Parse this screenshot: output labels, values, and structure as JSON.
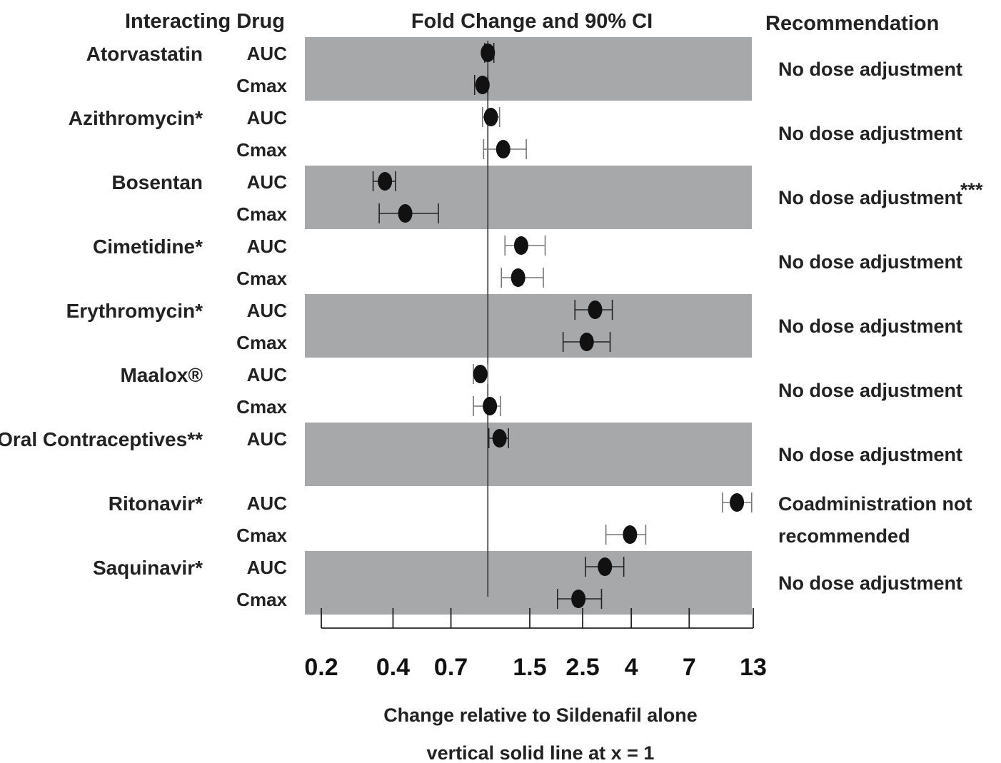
{
  "chart_data": {
    "type": "forest",
    "headers": {
      "drug": "Interacting Drug",
      "chart": "Fold Change and 90% CI",
      "recommendation": "Recommendation"
    },
    "x_scale": "log",
    "xlim": [
      0.2,
      13
    ],
    "x_ticks": [
      "0.2",
      "0.4",
      "0.7",
      "1.5",
      "2.5",
      "4",
      "7",
      "13"
    ],
    "reference_line_x": 1,
    "x_label_lines": [
      "Change relative to Sildenafil alone",
      "vertical solid line at x = 1"
    ],
    "groups": [
      {
        "drug": "Atorvastatin",
        "shaded": true,
        "recommendation": [
          "No dose adjustment"
        ],
        "rows": [
          {
            "param": "AUC",
            "estimate": 1.0,
            "ci": [
              0.97,
              1.06
            ]
          },
          {
            "param": "Cmax",
            "estimate": 0.95,
            "ci": [
              0.88,
              1.0
            ]
          }
        ]
      },
      {
        "drug": "Azithromycin*",
        "shaded": false,
        "recommendation": [
          "No dose adjustment"
        ],
        "rows": [
          {
            "param": "AUC",
            "estimate": 1.03,
            "ci": [
              0.95,
              1.12
            ]
          },
          {
            "param": "Cmax",
            "estimate": 1.16,
            "ci": [
              0.96,
              1.45
            ]
          }
        ]
      },
      {
        "drug": "Bosentan",
        "shaded": true,
        "recommendation": [
          "No dose adjustment"
        ],
        "footnote": "***",
        "rows": [
          {
            "param": "AUC",
            "estimate": 0.37,
            "ci": [
              0.33,
              0.41
            ]
          },
          {
            "param": "Cmax",
            "estimate": 0.45,
            "ci": [
              0.35,
              0.62
            ]
          }
        ]
      },
      {
        "drug": "Cimetidine*",
        "shaded": false,
        "recommendation": [
          "No dose adjustment"
        ],
        "rows": [
          {
            "param": "AUC",
            "estimate": 1.38,
            "ci": [
              1.18,
              1.74
            ]
          },
          {
            "param": "Cmax",
            "estimate": 1.34,
            "ci": [
              1.14,
              1.71
            ]
          }
        ]
      },
      {
        "drug": "Erythromycin*",
        "shaded": true,
        "recommendation": [
          "No dose adjustment"
        ],
        "rows": [
          {
            "param": "AUC",
            "estimate": 2.82,
            "ci": [
              2.32,
              3.33
            ]
          },
          {
            "param": "Cmax",
            "estimate": 2.6,
            "ci": [
              2.07,
              3.26
            ]
          }
        ]
      },
      {
        "drug": "Maalox®",
        "shaded": false,
        "recommendation": [
          "No dose adjustment"
        ],
        "rows": [
          {
            "param": "AUC",
            "estimate": 0.93,
            "ci": [
              0.87,
              1.0
            ]
          },
          {
            "param": "Cmax",
            "estimate": 1.02,
            "ci": [
              0.87,
              1.13
            ]
          }
        ]
      },
      {
        "drug": "Oral Contraceptives**",
        "shaded": true,
        "recommendation": [
          "No dose adjustment"
        ],
        "rows": [
          {
            "param": "AUC",
            "estimate": 1.12,
            "ci": [
              1.01,
              1.22
            ]
          }
        ]
      },
      {
        "drug": "Ritonavir*",
        "shaded": false,
        "recommendation": [
          "Coadministration not",
          "recommended"
        ],
        "rows": [
          {
            "param": "AUC",
            "estimate": 11.1,
            "ci": [
              9.65,
              12.8
            ]
          },
          {
            "param": "Cmax",
            "estimate": 3.95,
            "ci": [
              3.13,
              4.6
            ]
          }
        ]
      },
      {
        "drug": "Saquinavir*",
        "shaded": true,
        "recommendation": [
          "No dose adjustment"
        ],
        "rows": [
          {
            "param": "AUC",
            "estimate": 3.1,
            "ci": [
              2.57,
              3.72
            ]
          },
          {
            "param": "Cmax",
            "estimate": 2.4,
            "ci": [
              1.96,
              3.0
            ]
          }
        ]
      }
    ]
  }
}
